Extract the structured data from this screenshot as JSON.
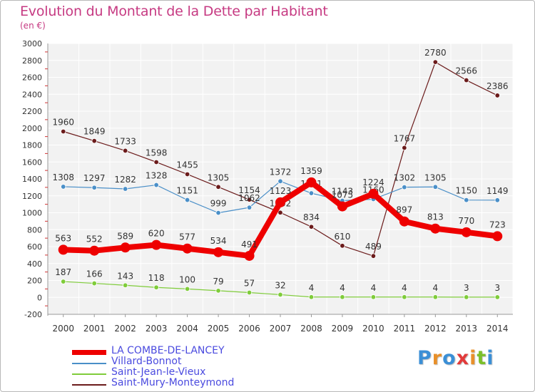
{
  "title": "Evolution du Montant de la Dette par Habitant",
  "unit_label": "(en €)",
  "brand": {
    "letters": [
      "P",
      "r",
      "o",
      "x",
      "i",
      "t",
      "i"
    ],
    "colors": [
      "#3b8fd6",
      "#e8902a",
      "#3b8fd6",
      "#e23a3a",
      "#e8902a",
      "#7bbf2a",
      "#3b8fd6"
    ]
  },
  "chart_data": {
    "type": "line",
    "x": [
      "2000",
      "2001",
      "2002",
      "2003",
      "2004",
      "2005",
      "2006",
      "2007",
      "2008",
      "2009",
      "2010",
      "2011",
      "2012",
      "2013",
      "2014"
    ],
    "ylim": [
      -200,
      3000
    ],
    "yticks": [
      "-200",
      "0",
      "200",
      "400",
      "600",
      "800",
      "1000",
      "1200",
      "1400",
      "1600",
      "1800",
      "2000",
      "2200",
      "2400",
      "2600",
      "2800",
      "3000"
    ],
    "grid": true,
    "legend_position": "bottom-left",
    "series": [
      {
        "name": "Saint-Mury-Monteymond",
        "color": "#6b1b1b",
        "width": 1.2,
        "values": [
          1960,
          1849,
          1733,
          1598,
          1455,
          1305,
          1154,
          1002,
          834,
          610,
          489,
          1767,
          2780,
          2566,
          2386
        ],
        "labels": [
          "1960",
          "1849",
          "1733",
          "1598",
          "1455",
          "1305",
          "1154",
          "1002",
          "834",
          "610",
          "489",
          "1767",
          "2780",
          "2566",
          "2386"
        ]
      },
      {
        "name": "Villard-Bonnot",
        "color": "#4a8fc8",
        "width": 1.2,
        "values": [
          1308,
          1297,
          1282,
          1328,
          1151,
          999,
          1062,
          1372,
          1231,
          1143,
          1160,
          1302,
          1305,
          1150,
          1149
        ],
        "labels": [
          "1308",
          "1297",
          "1282",
          "1328",
          "1151",
          "999",
          "1062",
          "1372",
          "1231",
          "1143",
          "1160",
          "1302",
          "1305",
          "1150",
          "1149"
        ]
      },
      {
        "name": "Saint-Jean-le-Vieux",
        "color": "#7fcc3a",
        "width": 1.2,
        "values": [
          187,
          166,
          143,
          118,
          100,
          79,
          57,
          32,
          4,
          4,
          4,
          4,
          4,
          3,
          3
        ],
        "labels": [
          "187",
          "166",
          "143",
          "118",
          "100",
          "79",
          "57",
          "32",
          "4",
          "4",
          "4",
          "4",
          "4",
          "3",
          "3"
        ]
      },
      {
        "name": "LA COMBE-DE-LANCEY",
        "color": "#ee0000",
        "width": 8,
        "values": [
          563,
          552,
          589,
          620,
          577,
          534,
          491,
          1123,
          1359,
          1075,
          1224,
          897,
          813,
          770,
          723
        ],
        "labels": [
          "563",
          "552",
          "589",
          "620",
          "577",
          "534",
          "491",
          "1123",
          "1359",
          "1075",
          "1224",
          "897",
          "813",
          "770",
          "723"
        ]
      }
    ]
  }
}
